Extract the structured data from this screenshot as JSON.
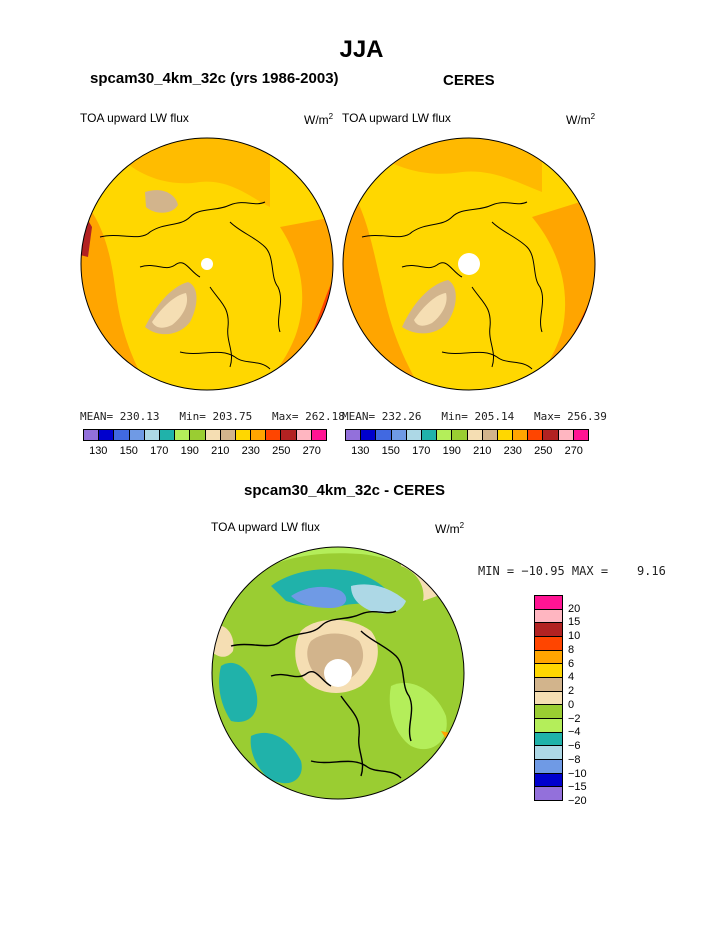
{
  "page": {
    "title": "JJA"
  },
  "colors": {
    "abs_levels": [
      "#9370db",
      "#0000cd",
      "#4169e1",
      "#6f9ae5",
      "#add8e6",
      "#20b2aa",
      "#b4ee5a",
      "#9acd32",
      "#f5deb3",
      "#d2b48c",
      "#ffd700",
      "#ffa500",
      "#ff4500",
      "#b22222",
      "#ffb6c1",
      "#ff1493"
    ],
    "diff_levels": [
      "#ff1493",
      "#ffb6c1",
      "#b22222",
      "#ff4500",
      "#ffa500",
      "#ffd700",
      "#d2b48c",
      "#f5deb3",
      "#9acd32",
      "#b4ee5a",
      "#20b2aa",
      "#add8e6",
      "#6f9ae5",
      "#0000cd",
      "#9370db"
    ]
  },
  "panels": [
    {
      "title": "spcam30_4km_32c (yrs 1986-2003)",
      "variable": "TOA upward LW flux",
      "units": "W/m",
      "units_sup": "2",
      "stats": "MEAN= 230.13   Min= 203.75   Max= 262.18",
      "colorbar_ticks": [
        "130",
        "150",
        "170",
        "190",
        "210",
        "230",
        "250",
        "270"
      ]
    },
    {
      "title": "CERES",
      "variable": "TOA upward LW flux",
      "units": "W/m",
      "units_sup": "2",
      "stats": "MEAN= 232.26   Min= 205.14   Max= 256.39",
      "colorbar_ticks": [
        "130",
        "150",
        "170",
        "190",
        "210",
        "230",
        "250",
        "270"
      ]
    }
  ],
  "diff_panel": {
    "title": "spcam30_4km_32c - CERES",
    "variable": "TOA upward LW flux",
    "units": "W/m",
    "units_sup": "2",
    "stats": "MIN = −10.95 MAX =    9.16",
    "colorbar_ticks": [
      "20",
      "15",
      "10",
      "8",
      "6",
      "4",
      "2",
      "0",
      "−2",
      "−4",
      "−6",
      "−8",
      "−10",
      "−15",
      "−20"
    ]
  },
  "chart_data": [
    {
      "type": "heatmap",
      "projection": "polar stereographic (north pole)",
      "title": "spcam30_4km_32c (yrs 1986-2003)",
      "variable": "TOA upward LW flux",
      "units": "W/m2",
      "stats": {
        "mean": 230.13,
        "min": 203.75,
        "max": 262.18
      },
      "contour_levels": [
        130,
        140,
        150,
        160,
        170,
        180,
        190,
        200,
        210,
        220,
        230,
        240,
        250,
        260,
        270
      ]
    },
    {
      "type": "heatmap",
      "projection": "polar stereographic (north pole)",
      "title": "CERES",
      "variable": "TOA upward LW flux",
      "units": "W/m2",
      "stats": {
        "mean": 232.26,
        "min": 205.14,
        "max": 256.39
      },
      "contour_levels": [
        130,
        140,
        150,
        160,
        170,
        180,
        190,
        200,
        210,
        220,
        230,
        240,
        250,
        260,
        270
      ]
    },
    {
      "type": "heatmap",
      "projection": "polar stereographic (north pole)",
      "title": "spcam30_4km_32c - CERES",
      "variable": "TOA upward LW flux",
      "units": "W/m2",
      "stats": {
        "min": -10.95,
        "max": 9.16
      },
      "contour_levels": [
        -20,
        -15,
        -10,
        -8,
        -6,
        -4,
        -2,
        0,
        2,
        4,
        6,
        8,
        10,
        15,
        20
      ]
    }
  ]
}
